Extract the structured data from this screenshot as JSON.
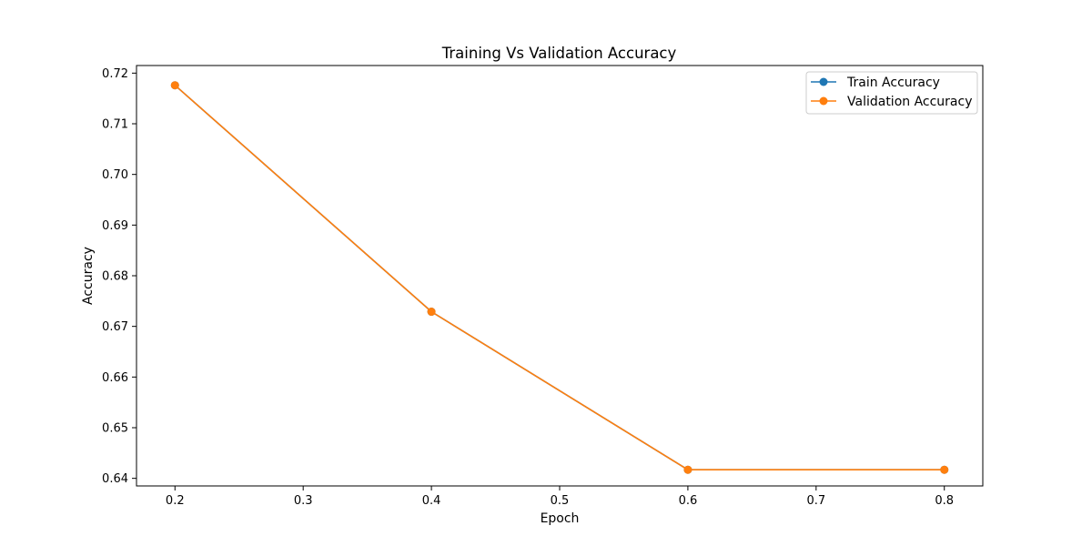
{
  "chart_data": {
    "type": "line",
    "title": "Training Vs Validation Accuracy",
    "xlabel": "Epoch",
    "ylabel": "Accuracy",
    "xlim": [
      0.17,
      0.83
    ],
    "ylim": [
      0.6385,
      0.7215
    ],
    "x_ticks": [
      "0.2",
      "0.3",
      "0.4",
      "0.5",
      "0.6",
      "0.7",
      "0.8"
    ],
    "y_ticks": [
      "0.64",
      "0.65",
      "0.66",
      "0.67",
      "0.68",
      "0.69",
      "0.70",
      "0.71",
      "0.72"
    ],
    "grid": false,
    "legend": "top-right",
    "series": [
      {
        "name": "Train Accuracy",
        "color": "#1f77b4",
        "x": [
          0.2,
          0.4,
          0.6,
          0.8
        ],
        "y": [
          0.7176,
          0.6729,
          0.6417,
          0.6417
        ]
      },
      {
        "name": "Validation Accuracy",
        "color": "#ff7f0e",
        "x": [
          0.2,
          0.4,
          0.6,
          0.8
        ],
        "y": [
          0.7176,
          0.6729,
          0.6417,
          0.6417
        ]
      }
    ]
  }
}
